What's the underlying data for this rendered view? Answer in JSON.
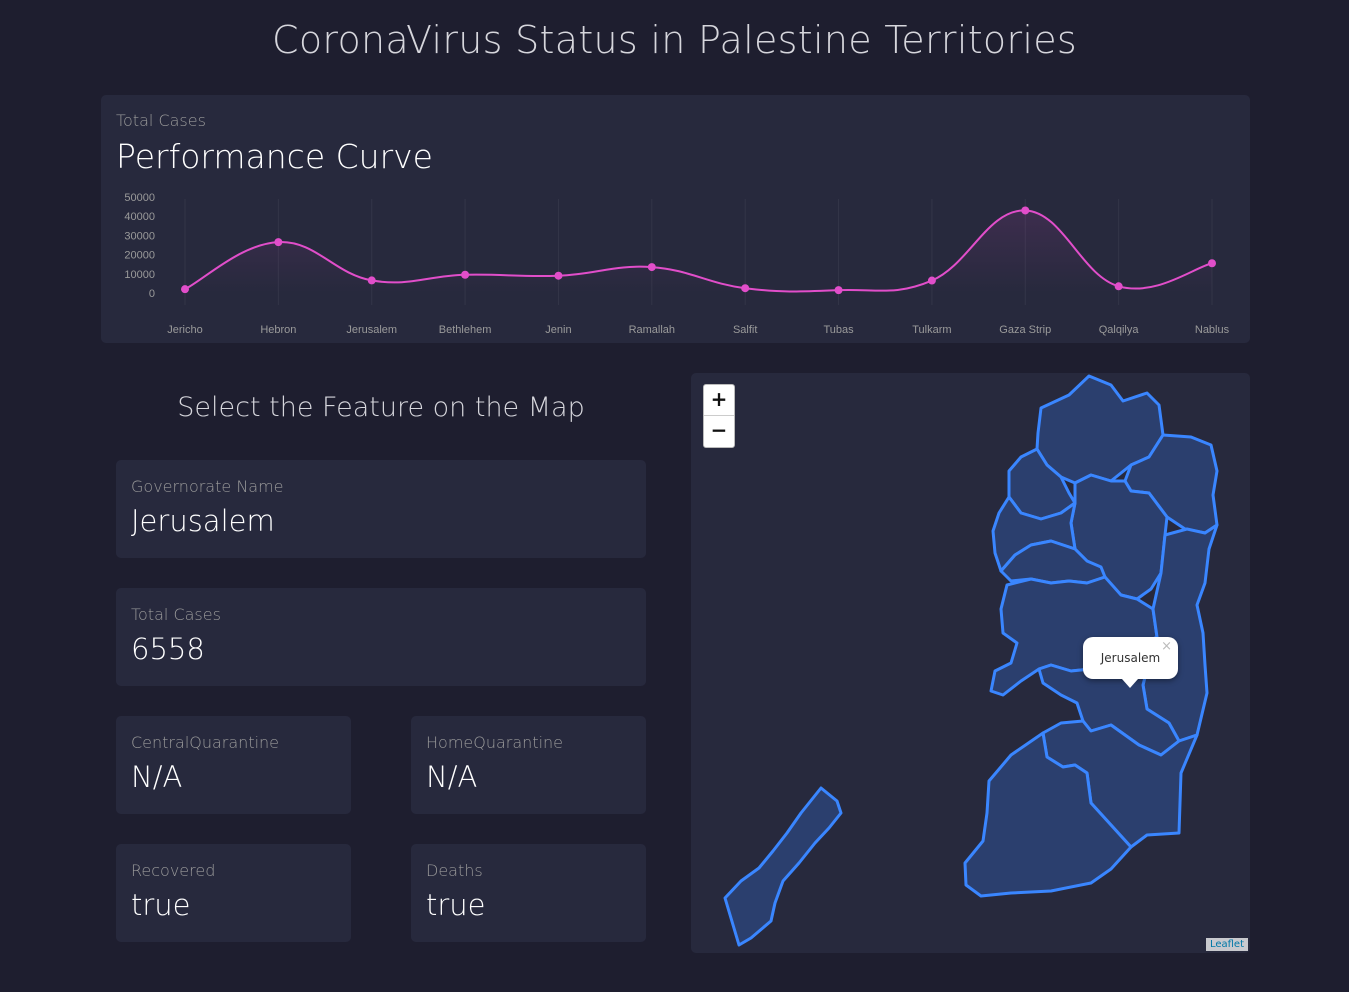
{
  "page": {
    "title": "CoronaVirus Status in Palestine Territories"
  },
  "chart_card": {
    "subtitle": "Total Cases",
    "title": "Performance Curve"
  },
  "chart_data": {
    "type": "line",
    "title": "Performance Curve",
    "subtitle": "Total Cases",
    "categories": [
      "Jericho",
      "Hebron",
      "Jerusalem",
      "Bethlehem",
      "Jenin",
      "Ramallah",
      "Salfit",
      "Tubas",
      "Tulkarm",
      "Gaza Strip",
      "Qalqilya",
      "Nablus"
    ],
    "series": [
      {
        "values": [
          2000,
          26500,
          6558,
          9500,
          9000,
          13500,
          2500,
          1500,
          6500,
          43000,
          3500,
          15500
        ]
      }
    ],
    "yticks": [
      0,
      10000,
      20000,
      30000,
      40000,
      50000
    ],
    "ylim": [
      0,
      50000
    ],
    "color": "#e14eca",
    "grid": "vertical"
  },
  "selection": {
    "heading": "Select the Feature on the Map"
  },
  "fields": {
    "governorate": {
      "label": "Governorate Name",
      "value": "Jerusalem"
    },
    "total_cases": {
      "label": "Total Cases",
      "value": "6558"
    },
    "central_quarantine": {
      "label": "CentralQuarantine",
      "value": "N/A"
    },
    "home_quarantine": {
      "label": "HomeQuarantine",
      "value": "N/A"
    },
    "recovered": {
      "label": "Recovered",
      "value": "true"
    },
    "deaths": {
      "label": "Deaths",
      "value": "true"
    }
  },
  "map": {
    "zoom_in": "+",
    "zoom_out": "−",
    "popup_text": "Jerusalem",
    "popup_close": "×",
    "attribution": "Leaflet",
    "region_stroke": "#3a86ff",
    "region_fill": "#2b3f6e"
  }
}
